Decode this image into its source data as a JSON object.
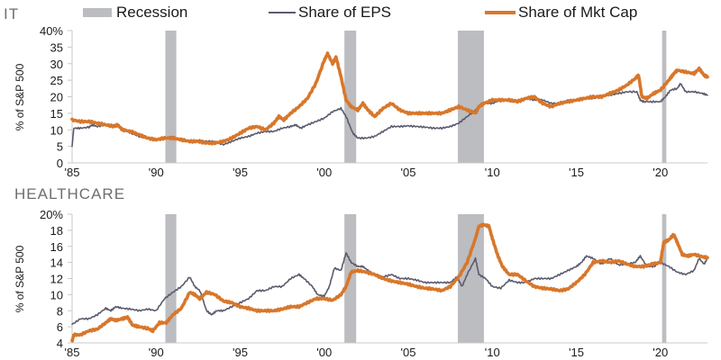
{
  "legend": {
    "recession": "Recession",
    "eps": "Share of EPS",
    "mktcap": "Share of Mkt Cap"
  },
  "colors": {
    "recession": "#bcbdc0",
    "eps": "#5a5a6e",
    "mktcap": "#d8772b",
    "axis": "#c8c8c8"
  },
  "chart_data": [
    {
      "type": "line",
      "title": "IT",
      "ylabel": "% of S&P 500",
      "xlabel": "",
      "xlim": [
        1985,
        2022.8
      ],
      "ylim": [
        0,
        40
      ],
      "yticks": [
        0,
        5,
        10,
        15,
        20,
        25,
        30,
        35,
        40
      ],
      "ytick_labels": [
        "0",
        "5",
        "10",
        "15",
        "20",
        "25",
        "30",
        "35",
        "40%"
      ],
      "xticks": [
        1985,
        1990,
        1995,
        2000,
        2005,
        2010,
        2015,
        2020
      ],
      "xtick_labels": [
        "'85",
        "'90",
        "'95",
        "'00",
        "'05",
        "'10",
        "'15",
        "'20"
      ],
      "recessions": [
        [
          1990.55,
          1991.2
        ],
        [
          2001.2,
          2001.9
        ],
        [
          2007.95,
          2009.5
        ],
        [
          2020.1,
          2020.35
        ]
      ],
      "series": [
        {
          "name": "Share of EPS",
          "x": [
            1985,
            1985.1,
            1985.5,
            1986,
            1986.2,
            1986.5,
            1987,
            1987.5,
            1988,
            1988.5,
            1989,
            1989.5,
            1990,
            1990.5,
            1991,
            1991.5,
            1992,
            1992.5,
            1993,
            1993.5,
            1994,
            1994.5,
            1995,
            1995.5,
            1996,
            1996.5,
            1997,
            1997.5,
            1998,
            1998.3,
            1998.6,
            1999,
            1999.5,
            2000,
            2000.5,
            2001,
            2001.3,
            2001.7,
            2002,
            2002.5,
            2003,
            2003.5,
            2004,
            2004.5,
            2005,
            2005.5,
            2006,
            2006.5,
            2007,
            2007.5,
            2008,
            2008.5,
            2009,
            2009.5,
            2010,
            2010.5,
            2011,
            2011.5,
            2012,
            2012.5,
            2013,
            2013.5,
            2014,
            2014.5,
            2015,
            2015.5,
            2016,
            2016.5,
            2017,
            2017.5,
            2018,
            2018.6,
            2018.8,
            2019,
            2019.5,
            2020,
            2020.3,
            2020.6,
            2021,
            2021.2,
            2021.5,
            2022,
            2022.5,
            2022.8
          ],
          "values": [
            5,
            10.5,
            10.5,
            10.8,
            11.5,
            11,
            11.5,
            11.5,
            10.5,
            9,
            8,
            7.5,
            7,
            7.5,
            7.8,
            7,
            6.5,
            6.8,
            6.5,
            6.5,
            5.5,
            6.5,
            7.5,
            8,
            9,
            9.5,
            9.5,
            10.5,
            11,
            11.5,
            10.5,
            11.5,
            12.5,
            13.5,
            15.5,
            16.5,
            14,
            9,
            7.5,
            7.5,
            8,
            9.5,
            11,
            11,
            11.2,
            11,
            10.8,
            10.5,
            10.5,
            11,
            12,
            14,
            16,
            18,
            18,
            19,
            19,
            19,
            19.5,
            19,
            19,
            18,
            18,
            19,
            19,
            19.5,
            19.5,
            20,
            20.5,
            21,
            21.5,
            21.5,
            19,
            18.5,
            18.5,
            18.5,
            20,
            22,
            22.5,
            24,
            21.5,
            21.5,
            21,
            20.5
          ]
        },
        {
          "name": "Share of Mkt Cap",
          "x": [
            1985,
            1985.5,
            1986,
            1986.5,
            1987,
            1987.5,
            1987.7,
            1988,
            1988.5,
            1989,
            1989.5,
            1990,
            1990.5,
            1991,
            1991.5,
            1992,
            1992.5,
            1993,
            1993.5,
            1994,
            1994.5,
            1995,
            1995.5,
            1996,
            1996.5,
            1997,
            1997.3,
            1997.6,
            1998,
            1998.5,
            1999,
            1999.5,
            2000,
            2000.2,
            2000.5,
            2000.7,
            2001,
            2001.3,
            2001.6,
            2002,
            2002.3,
            2002.6,
            2003,
            2003.5,
            2004,
            2004.5,
            2005,
            2005.5,
            2006,
            2006.5,
            2007,
            2007.5,
            2008,
            2008.5,
            2009,
            2009.2,
            2009.5,
            2010,
            2010.5,
            2011,
            2011.5,
            2012,
            2012.5,
            2013,
            2013.5,
            2014,
            2014.5,
            2015,
            2015.5,
            2016,
            2016.5,
            2017,
            2017.5,
            2018,
            2018.5,
            2018.7,
            2018.9,
            2019.2,
            2019.6,
            2020,
            2020.5,
            2020.8,
            2021,
            2021.5,
            2022,
            2022.3,
            2022.6,
            2022.8
          ],
          "values": [
            13,
            12.5,
            12.5,
            12,
            11.5,
            11,
            11.5,
            10,
            9.5,
            8.5,
            7.5,
            7,
            7.5,
            7.5,
            7,
            6.5,
            6.5,
            6,
            6,
            6.5,
            7.5,
            9,
            10.5,
            11,
            10,
            12,
            14,
            13,
            15,
            17,
            19.5,
            24,
            31,
            33,
            30,
            32,
            26,
            19,
            17,
            16,
            18,
            16,
            14,
            16.5,
            18,
            16,
            15,
            15,
            15,
            15,
            15,
            16,
            17,
            16,
            15,
            17,
            18,
            19,
            19,
            19,
            18.5,
            19.5,
            20,
            18,
            17,
            18,
            18.5,
            19,
            19.5,
            20,
            20,
            21,
            22,
            23.5,
            25.5,
            26.5,
            20,
            19.5,
            21,
            22,
            25,
            27,
            28,
            27.5,
            27,
            28.5,
            26.5,
            26
          ]
        }
      ]
    },
    {
      "type": "line",
      "title": "HEALTHCARE",
      "ylabel": "% of S&P 500",
      "xlabel": "",
      "xlim": [
        1985,
        2022.8
      ],
      "ylim": [
        4,
        20
      ],
      "yticks": [
        4,
        6,
        8,
        10,
        12,
        14,
        16,
        18,
        20
      ],
      "ytick_labels": [
        "4",
        "6",
        "8",
        "10",
        "12",
        "14",
        "16",
        "18",
        "20%"
      ],
      "xticks": [
        1985,
        1990,
        1995,
        2000,
        2005,
        2010,
        2015,
        2020
      ],
      "xtick_labels": [
        "'85",
        "'90",
        "'95",
        "'00",
        "'05",
        "'10",
        "'15",
        "'20"
      ],
      "recessions": [
        [
          1990.55,
          1991.2
        ],
        [
          2001.2,
          2001.9
        ],
        [
          2007.95,
          2009.5
        ],
        [
          2020.1,
          2020.35
        ]
      ],
      "series": [
        {
          "name": "Share of EPS",
          "x": [
            1985,
            1985.5,
            1986,
            1986.5,
            1987,
            1987.3,
            1987.6,
            1988,
            1988.5,
            1989,
            1989.5,
            1990,
            1990.5,
            1991,
            1991.5,
            1992,
            1992.3,
            1992.6,
            1993,
            1993.3,
            1993.6,
            1994,
            1994.5,
            1995,
            1995.5,
            1996,
            1996.5,
            1997,
            1997.5,
            1998,
            1998.5,
            1998.8,
            1999.3,
            1999.6,
            2000,
            2000.3,
            2000.6,
            2001,
            2001.3,
            2001.6,
            2002,
            2002.3,
            2002.6,
            2003,
            2003.5,
            2004,
            2004.5,
            2005,
            2005.5,
            2006,
            2006.5,
            2007,
            2007.5,
            2007.9,
            2008.2,
            2008.5,
            2009,
            2009.2,
            2009.6,
            2010,
            2010.5,
            2011,
            2011.5,
            2012,
            2012.5,
            2013,
            2013.5,
            2014,
            2014.5,
            2015,
            2015.3,
            2015.6,
            2016,
            2016.5,
            2017,
            2017.5,
            2018,
            2018.5,
            2018.8,
            2019.2,
            2019.6,
            2020,
            2020.5,
            2021,
            2021.5,
            2022,
            2022.3,
            2022.6,
            2022.8
          ],
          "values": [
            6.3,
            7,
            7,
            7.5,
            8.3,
            8,
            8.5,
            8.3,
            8.2,
            8,
            8.2,
            8,
            9.5,
            10.3,
            11,
            12.2,
            11,
            10.5,
            8,
            7.5,
            8,
            8,
            8.5,
            9,
            9.5,
            10.5,
            10.5,
            11,
            11,
            12,
            12.5,
            12,
            11,
            10,
            9.8,
            11,
            13.3,
            13,
            15.2,
            14,
            13.5,
            13.5,
            13,
            12.5,
            12.2,
            12.5,
            12,
            12,
            11.8,
            11.5,
            11.5,
            11.5,
            11.5,
            12.2,
            11,
            12.5,
            14.5,
            12.5,
            12,
            11,
            10.8,
            11.8,
            11.5,
            11.5,
            12,
            12,
            12,
            12.5,
            13,
            13.5,
            14,
            14.8,
            14.5,
            13.8,
            14.5,
            13.7,
            13.8,
            14,
            14.8,
            13.5,
            13.5,
            14,
            13.5,
            12.8,
            12.5,
            13,
            14.5,
            13.8,
            14.5
          ]
        },
        {
          "name": "Share of Mkt Cap",
          "x": [
            1985,
            1985.1,
            1985.5,
            1986,
            1986.5,
            1987,
            1987.3,
            1987.6,
            1988,
            1988.3,
            1988.6,
            1989,
            1989.5,
            1989.8,
            1990.2,
            1990.6,
            1991,
            1991.5,
            1992,
            1992.3,
            1992.6,
            1993,
            1993.5,
            1994,
            1994.5,
            1995,
            1995.5,
            1996,
            1996.5,
            1997,
            1997.5,
            1998,
            1998.5,
            1999,
            1999.5,
            2000,
            2000.5,
            2001,
            2001.3,
            2001.6,
            2002,
            2002.5,
            2003,
            2003.5,
            2004,
            2004.5,
            2005,
            2005.5,
            2006,
            2006.5,
            2007,
            2007.5,
            2008,
            2008.5,
            2009,
            2009.2,
            2009.5,
            2009.8,
            2010,
            2010.3,
            2010.6,
            2011,
            2011.5,
            2012,
            2012.5,
            2013,
            2013.5,
            2014,
            2014.5,
            2015,
            2015.5,
            2016,
            2016.5,
            2017,
            2017.5,
            2018,
            2018.5,
            2019,
            2019.5,
            2020,
            2020.2,
            2020.5,
            2020.8,
            2021,
            2021.3,
            2021.6,
            2022,
            2022.5,
            2022.8
          ],
          "values": [
            4.2,
            5,
            5,
            5.5,
            5.7,
            6.5,
            7,
            6.8,
            7,
            7.2,
            6.2,
            6,
            5.8,
            5.5,
            6.5,
            6.5,
            7.5,
            8.3,
            10.3,
            10,
            9.5,
            10.3,
            10,
            9.2,
            9,
            8.5,
            8.3,
            8,
            8,
            8,
            8.2,
            8.5,
            8.5,
            9,
            9.5,
            9.5,
            9.3,
            10,
            11,
            12.8,
            13,
            12.8,
            12.5,
            12,
            11.7,
            11.5,
            11.3,
            11,
            10.8,
            10.7,
            10.5,
            11,
            12.2,
            14,
            17,
            18.5,
            18.7,
            18.5,
            17,
            15,
            13.5,
            12.5,
            12.5,
            11.7,
            11,
            10.8,
            10.7,
            10.5,
            10.7,
            11.5,
            12.5,
            14,
            14.2,
            14,
            14.2,
            13.8,
            13.5,
            13.5,
            13.8,
            14,
            16.5,
            16.8,
            17.5,
            16.5,
            15,
            14.8,
            15,
            14.7,
            14.6
          ]
        }
      ]
    }
  ]
}
